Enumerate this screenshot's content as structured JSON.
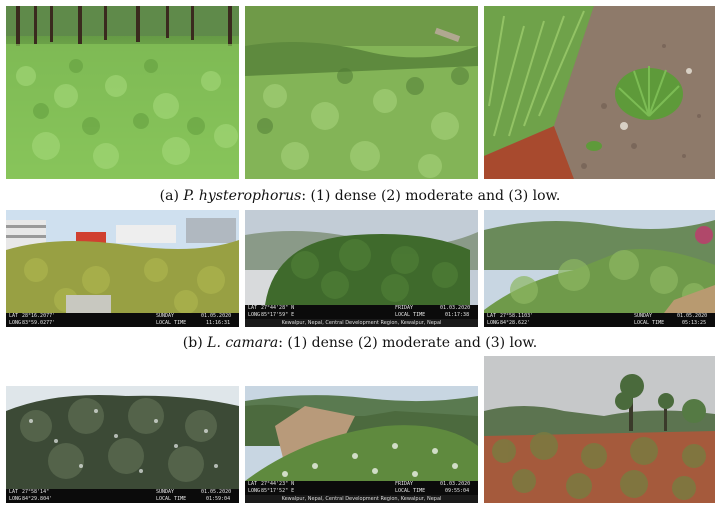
{
  "captions": {
    "a": {
      "prefix": "(a)",
      "species": "P. hysterophorus",
      "rest": ": (1) dense (2) moderate and (3) low."
    },
    "b": {
      "prefix": "(b)",
      "species": "L. camara",
      "rest": ": (1) dense (2) moderate and (3) low."
    }
  },
  "photos": {
    "b1": {
      "lat_label": "LAT",
      "lat": "28°16.2077'",
      "long_label": "LONG",
      "long": "83°59.0277'",
      "day": "SUNDAY",
      "date": "01.05.2020",
      "time_label": "LOCAL TIME",
      "time": "11:16:31"
    },
    "b2": {
      "lat_label": "LAT",
      "lat": "27°44'28\" N",
      "long_label": "LONG",
      "long": "85°17'59\" E",
      "day": "FRIDAY",
      "date": "01.03.2020",
      "time_label": "LOCAL TIME",
      "time": "01:17:38",
      "note": "Kewalpur, Nepal, Central Development Region, Kewalpur, Nepal"
    },
    "b3": {
      "lat_label": "LAT",
      "lat": "27°58.1103'",
      "long_label": "LONG",
      "long": "84°28.622'",
      "day": "SUNDAY",
      "date": "01.05.2020",
      "time_label": "LOCAL TIME",
      "time": "05:13:25"
    },
    "c1": {
      "lat_label": "LAT",
      "lat": "27°58'14\"",
      "long_label": "LONG",
      "long": "84°29.804'",
      "day": "SUNDAY",
      "date": "01.05.2020",
      "time_label": "LOCAL TIME",
      "time": "01:59:04"
    },
    "c2": {
      "lat_label": "LAT",
      "lat": "27°44'23\" N",
      "long_label": "LONG",
      "long": "85°17'52\" E",
      "day": "FRIDAY",
      "date": "01.03.2020",
      "time_label": "LOCAL TIME",
      "time": "09:55:04",
      "note": "Kewalpur, Nepal, Central Development Region, Kewalpur, Nepal"
    }
  }
}
